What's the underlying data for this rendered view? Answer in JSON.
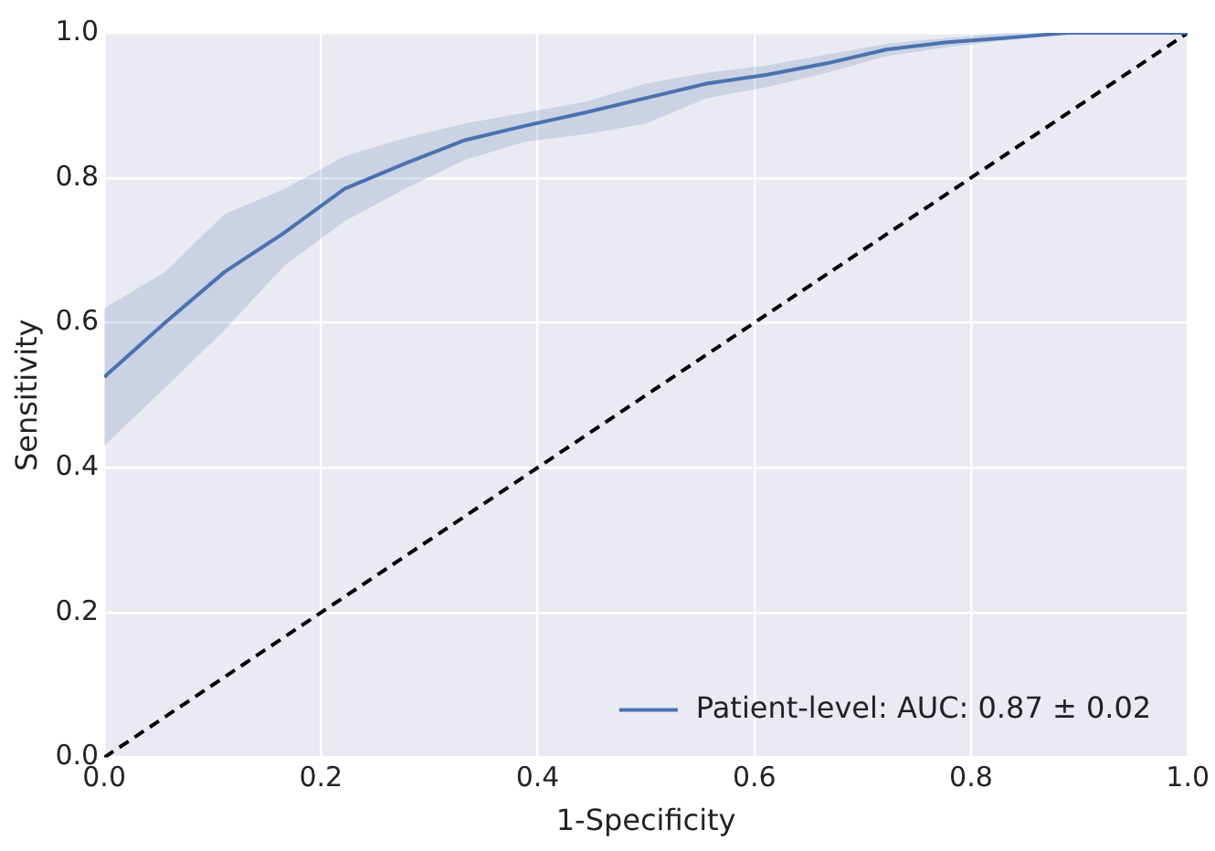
{
  "chart_data": {
    "type": "line",
    "xlabel": "1-Specificity",
    "ylabel": "Sensitivity",
    "xlim": [
      0,
      1
    ],
    "ylim": [
      0,
      1
    ],
    "xticks": [
      {
        "value": 0,
        "label": "0.0"
      },
      {
        "value": 0.2,
        "label": "0.2"
      },
      {
        "value": 0.4,
        "label": "0.4"
      },
      {
        "value": 0.6,
        "label": "0.6"
      },
      {
        "value": 0.8,
        "label": "0.8"
      },
      {
        "value": 1,
        "label": "1.0"
      }
    ],
    "yticks": [
      {
        "value": 0,
        "label": "0.0"
      },
      {
        "value": 0.2,
        "label": "0.2"
      },
      {
        "value": 0.4,
        "label": "0.4"
      },
      {
        "value": 0.6,
        "label": "0.6"
      },
      {
        "value": 0.8,
        "label": "0.8"
      },
      {
        "value": 1,
        "label": "1.0"
      }
    ],
    "grid": true,
    "legend": "bottom right",
    "series": [
      {
        "name": "Patient-level: AUC: 0.87 ± 0.02",
        "color": "#4c72b0",
        "x": [
          0,
          0.056,
          0.111,
          0.167,
          0.222,
          0.278,
          0.333,
          0.389,
          0.444,
          0.5,
          0.556,
          0.611,
          0.667,
          0.722,
          0.778,
          0.833,
          0.889,
          1
        ],
        "values": [
          0.525,
          0.6,
          0.67,
          0.725,
          0.785,
          0.82,
          0.852,
          0.872,
          0.89,
          0.91,
          0.93,
          0.942,
          0.958,
          0.977,
          0.987,
          0.993,
          1,
          1
        ],
        "lower": [
          0.43,
          0.51,
          0.59,
          0.68,
          0.74,
          0.785,
          0.825,
          0.85,
          0.86,
          0.875,
          0.91,
          0.925,
          0.945,
          0.968,
          0.98,
          0.99,
          1,
          1
        ],
        "upper": [
          0.62,
          0.67,
          0.75,
          0.785,
          0.83,
          0.855,
          0.875,
          0.89,
          0.905,
          0.93,
          0.945,
          0.955,
          0.97,
          0.985,
          0.993,
          1,
          1,
          1
        ]
      },
      {
        "type": "line",
        "color": "#000000",
        "line_style": "dashed",
        "x": [
          0,
          1
        ],
        "values": [
          0,
          1
        ]
      }
    ]
  }
}
